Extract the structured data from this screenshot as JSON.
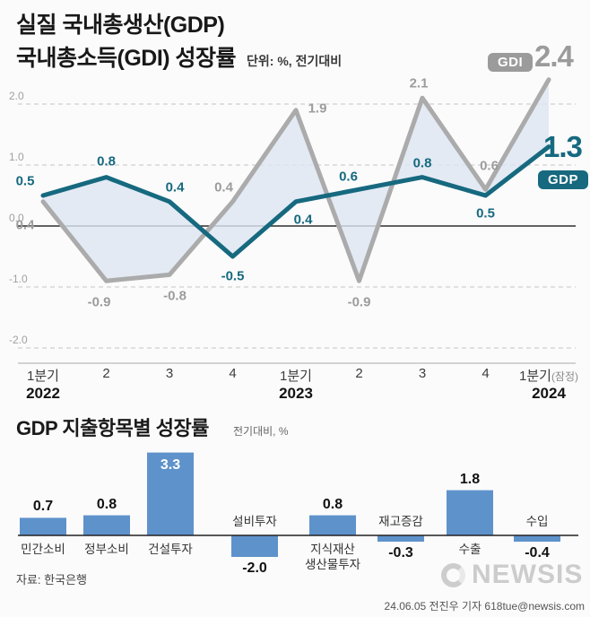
{
  "header": {
    "title_line1": "실질 국내총생산(GDP)",
    "title_line2": "국내총소득(GDI) 성장률",
    "unit_note": "단위: %, 전기대비"
  },
  "chart_data": [
    {
      "type": "line",
      "title": "실질 국내총생산(GDP) 국내총소득(GDI) 성장률",
      "unit": "단위: %, 전기대비",
      "categories": [
        "1분기",
        "2",
        "3",
        "4",
        "1분기",
        "2",
        "3",
        "4",
        "1분기(잠정)"
      ],
      "year_labels": [
        {
          "index": 0,
          "year": "2022"
        },
        {
          "index": 4,
          "year": "2023"
        },
        {
          "index": 8,
          "year": "2024"
        }
      ],
      "ylim": [
        -2.0,
        2.0
      ],
      "yticks": [
        2.0,
        1.0,
        0.0,
        -1.0,
        -2.0
      ],
      "grid": "dashed-horizontal",
      "series": [
        {
          "name": "GDP",
          "color": "#16697f",
          "values": [
            0.5,
            0.8,
            0.4,
            -0.5,
            0.4,
            0.6,
            0.8,
            0.5,
            1.3
          ],
          "final_label": "1.3"
        },
        {
          "name": "GDI",
          "color": "#ababab",
          "values": [
            0.4,
            -0.9,
            -0.8,
            0.4,
            1.9,
            -0.9,
            2.1,
            0.6,
            2.4
          ],
          "final_label": "2.4"
        }
      ],
      "fill_between_color": "#dde6f3"
    },
    {
      "type": "bar",
      "title": "GDP 지출항목별 성장률",
      "unit": "전기대비, %",
      "categories": [
        "민간소비",
        "정부소비",
        "건설투자",
        "설비투자",
        "지식재산\n생산물투자",
        "재고증감",
        "수출",
        "수입"
      ],
      "values": [
        0.7,
        0.8,
        3.3,
        -2.0,
        0.8,
        -0.3,
        1.8,
        -0.4
      ],
      "bar_color": "#5e92cb",
      "value_label_inside": [
        false,
        false,
        true,
        false,
        false,
        false,
        false,
        false
      ]
    }
  ],
  "footer": {
    "source": "자료: 한국은행",
    "watermark": "NEWSIS",
    "credit": "24.06.05 전진우 기자 618tue@newsis.com"
  }
}
